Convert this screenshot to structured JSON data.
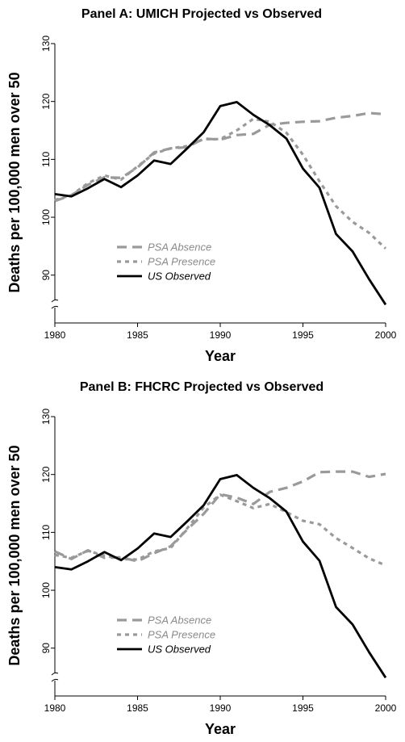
{
  "chart_data": [
    {
      "type": "line",
      "title": "Panel A: UMICH Projected vs Observed",
      "xlabel": "Year",
      "ylabel": "Deaths per 100,000 men over 50",
      "xlim": [
        1980,
        2000
      ],
      "ylim": [
        80,
        130
      ],
      "axis_break": true,
      "x_ticks": [
        "1980",
        "1985",
        "1990",
        "1995",
        "2000"
      ],
      "y_ticks": [
        "90",
        "100",
        "110",
        "120",
        "130"
      ],
      "legend_position": "lower-left",
      "series": [
        {
          "name": "PSA Absence",
          "style": "dashed",
          "color": "#9a9a9a",
          "x": [
            1980,
            1981,
            1982,
            1983,
            1984,
            1985,
            1986,
            1987,
            1988,
            1989,
            1990,
            1991,
            1992,
            1993,
            1994,
            1995,
            1996,
            1997,
            1998,
            1999,
            2000
          ],
          "y": [
            102.8,
            103.8,
            105.6,
            106.9,
            106.8,
            108.6,
            111.2,
            111.9,
            112.1,
            113.6,
            113.4,
            114.2,
            114.4,
            116.0,
            116.3,
            116.5,
            116.6,
            117.2,
            117.5,
            118.0,
            117.8
          ]
        },
        {
          "name": "PSA Presence",
          "style": "dotted",
          "color": "#9a9a9a",
          "x": [
            1980,
            1981,
            1982,
            1983,
            1984,
            1985,
            1986,
            1987,
            1988,
            1989,
            1990,
            1991,
            1992,
            1993,
            1994,
            1995,
            1996,
            1997,
            1998,
            1999,
            2000
          ],
          "y": [
            103.0,
            103.8,
            105.9,
            107.2,
            106.5,
            108.8,
            111.0,
            111.9,
            112.3,
            113.5,
            113.5,
            115.0,
            117.0,
            116.5,
            114.6,
            110.8,
            106.2,
            101.9,
            99.2,
            97.3,
            94.6
          ]
        },
        {
          "name": "US Observed",
          "style": "solid",
          "color": "#000000",
          "x": [
            1980,
            1981,
            1982,
            1983,
            1984,
            1985,
            1986,
            1987,
            1988,
            1989,
            1990,
            1991,
            1992,
            1993,
            1994,
            1995,
            1996,
            1997,
            1998,
            1999,
            2000
          ],
          "y": [
            104.0,
            103.6,
            105.0,
            106.6,
            105.2,
            107.2,
            109.8,
            109.2,
            111.9,
            114.7,
            119.2,
            119.9,
            117.7,
            115.9,
            113.6,
            108.4,
            105.1,
            97.1,
            94.1,
            89.3,
            84.9
          ]
        }
      ]
    },
    {
      "type": "line",
      "title": "Panel B: FHCRC Projected vs Observed",
      "xlabel": "Year",
      "ylabel": "Deaths per 100,000 men over 50",
      "xlim": [
        1980,
        2000
      ],
      "ylim": [
        80,
        130
      ],
      "axis_break": true,
      "x_ticks": [
        "1980",
        "1985",
        "1990",
        "1995",
        "2000"
      ],
      "y_ticks": [
        "90",
        "100",
        "110",
        "120",
        "130"
      ],
      "legend_position": "lower-left",
      "series": [
        {
          "name": "PSA Absence",
          "style": "dashed",
          "color": "#9a9a9a",
          "x": [
            1980,
            1981,
            1982,
            1983,
            1984,
            1985,
            1986,
            1987,
            1988,
            1989,
            1990,
            1991,
            1992,
            1993,
            1994,
            1995,
            1996,
            1997,
            1998,
            1999,
            2000
          ],
          "y": [
            106.7,
            105.4,
            106.9,
            105.6,
            105.7,
            105.0,
            106.4,
            107.6,
            110.5,
            113.2,
            116.6,
            116.0,
            114.9,
            117.0,
            117.7,
            118.8,
            120.4,
            120.5,
            120.5,
            119.6,
            120.1
          ]
        },
        {
          "name": "PSA Presence",
          "style": "dotted",
          "color": "#9a9a9a",
          "x": [
            1980,
            1981,
            1982,
            1983,
            1984,
            1985,
            1986,
            1987,
            1988,
            1989,
            1990,
            1991,
            1992,
            1993,
            1994,
            1995,
            1996,
            1997,
            1998,
            1999,
            2000
          ],
          "y": [
            106.1,
            105.6,
            106.8,
            106.0,
            105.4,
            105.3,
            106.7,
            107.3,
            110.7,
            114.3,
            116.5,
            115.4,
            114.2,
            114.9,
            113.5,
            112.0,
            111.4,
            109.0,
            107.3,
            105.5,
            104.3
          ]
        },
        {
          "name": "US Observed",
          "style": "solid",
          "color": "#000000",
          "x": [
            1980,
            1981,
            1982,
            1983,
            1984,
            1985,
            1986,
            1987,
            1988,
            1989,
            1990,
            1991,
            1992,
            1993,
            1994,
            1995,
            1996,
            1997,
            1998,
            1999,
            2000
          ],
          "y": [
            104.0,
            103.6,
            105.0,
            106.6,
            105.2,
            107.2,
            109.8,
            109.2,
            111.9,
            114.7,
            119.2,
            119.9,
            117.7,
            115.9,
            113.6,
            108.4,
            105.1,
            97.1,
            94.1,
            89.3,
            84.9
          ]
        }
      ]
    }
  ]
}
